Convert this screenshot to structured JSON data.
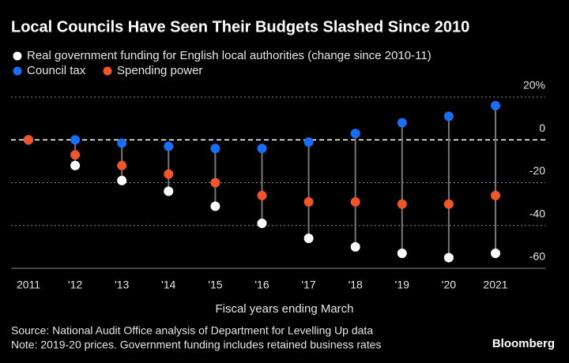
{
  "chart_data": {
    "type": "dot",
    "title": "Local Councils Have Seen Their Budgets Slashed Since 2010",
    "x_label": "Fiscal years ending March",
    "source": "Source: National Audit Office analysis of Department for Levelling Up data",
    "note": "Note: 2019-20 prices. Government funding includes retained business rates",
    "brand": "Bloomberg",
    "categories": [
      "2011",
      "'12",
      "'13",
      "'14",
      "'15",
      "'16",
      "'17",
      "'18",
      "'19",
      "'20",
      "2021"
    ],
    "series": [
      {
        "name": "Real government funding for English local authorities (change since 2010-11)",
        "color": "#ffffff",
        "values": [
          0,
          -12,
          -19,
          -24,
          -31,
          -39,
          -46,
          -50,
          -53,
          -55,
          -53
        ]
      },
      {
        "name": "Council tax",
        "color": "#1a6ef5",
        "values": [
          0,
          0,
          -1.5,
          -3,
          -4,
          -4,
          -1,
          3,
          8,
          11,
          16
        ]
      },
      {
        "name": "Spending power",
        "color": "#f0552b",
        "values": [
          0,
          -7,
          -12,
          -16,
          -20,
          -26,
          -29,
          -29,
          -30,
          -30,
          -26
        ]
      }
    ],
    "ylim": [
      -60,
      20
    ],
    "yticks": [
      {
        "value": 20,
        "label": "20%"
      },
      0,
      -20,
      -40,
      -60
    ],
    "grid": true
  }
}
